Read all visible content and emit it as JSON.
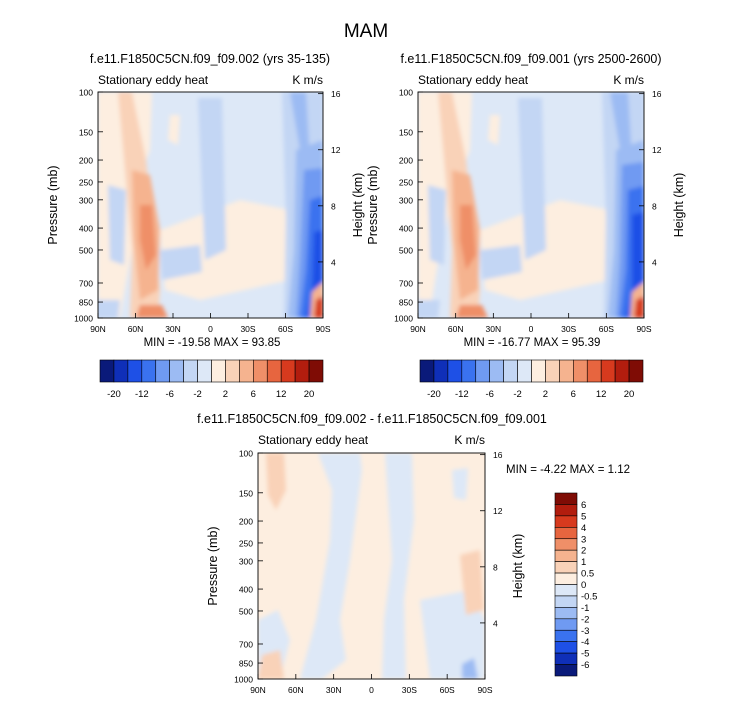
{
  "page_title": "MAM",
  "colors": {
    "scale_top": [
      "#0a1a7a",
      "#0f2fb8",
      "#1e50e6",
      "#3a72ef",
      "#6f9af2",
      "#9cbbf3",
      "#c3d6f4",
      "#dde8f7",
      "#fdeee0",
      "#f9d2b8",
      "#f5b38f",
      "#ef8f68",
      "#e7653f",
      "#d73a1e",
      "#b21d0e",
      "#7f0c05"
    ],
    "scale_diff": [
      "#0a1a7a",
      "#0f2fb8",
      "#1e50e6",
      "#3a72ef",
      "#6f9af2",
      "#9cbbf3",
      "#c3d6f4",
      "#dde8f7",
      "#fdeee0",
      "#f9d2b8",
      "#f5b38f",
      "#ef8f68",
      "#e7653f",
      "#d73a1e",
      "#b21d0e",
      "#7f0c05"
    ]
  },
  "chart_data": [
    {
      "type": "heatmap",
      "title": "f.e11.F1850C5CN.f09_f09.002 (yrs 35-135)",
      "subtitle_left": "Stationary eddy heat",
      "units": "K m/s",
      "ylabel": "Pressure (mb)",
      "ylabel_right": "Height (km)",
      "x_ticks": [
        "90N",
        "60N",
        "30N",
        "0",
        "30S",
        "60S",
        "90S"
      ],
      "y_ticks": [
        "100",
        "150",
        "200",
        "250",
        "300",
        "400",
        "500",
        "700",
        "850",
        "1000"
      ],
      "height_ticks": [
        "16",
        "12",
        "8",
        "4"
      ],
      "stats": "MIN = -19.58   MAX = 93.85",
      "levels": [
        -20,
        -16,
        -12,
        -8,
        -6,
        -4,
        -2,
        -1,
        1,
        2,
        4,
        6,
        8,
        12,
        16,
        20
      ],
      "colorbar_labels": [
        "-20",
        "-12",
        "-6",
        "-2",
        "2",
        "6",
        "12",
        "20"
      ]
    },
    {
      "type": "heatmap",
      "title": "f.e11.F1850C5CN.f09_f09.001 (yrs 2500-2600)",
      "subtitle_left": "Stationary eddy heat",
      "units": "K m/s",
      "ylabel": "Pressure (mb)",
      "ylabel_right": "Height (km)",
      "x_ticks": [
        "90N",
        "60N",
        "30N",
        "0",
        "30S",
        "60S",
        "90S"
      ],
      "y_ticks": [
        "100",
        "150",
        "200",
        "250",
        "300",
        "400",
        "500",
        "700",
        "850",
        "1000"
      ],
      "height_ticks": [
        "16",
        "12",
        "8",
        "4"
      ],
      "stats": "MIN = -16.77   MAX = 95.39",
      "levels": [
        -20,
        -16,
        -12,
        -8,
        -6,
        -4,
        -2,
        -1,
        1,
        2,
        4,
        6,
        8,
        12,
        16,
        20
      ],
      "colorbar_labels": [
        "-20",
        "-12",
        "-6",
        "-2",
        "2",
        "6",
        "12",
        "20"
      ]
    },
    {
      "type": "heatmap",
      "title": "f.e11.F1850C5CN.f09_f09.002 - f.e11.F1850C5CN.f09_f09.001",
      "subtitle_left": "Stationary eddy heat",
      "units": "K m/s",
      "ylabel": "Pressure (mb)",
      "ylabel_right": "Height (km)",
      "x_ticks": [
        "90N",
        "60N",
        "30N",
        "0",
        "30S",
        "60S",
        "90S"
      ],
      "y_ticks": [
        "100",
        "150",
        "200",
        "250",
        "300",
        "400",
        "500",
        "700",
        "850",
        "1000"
      ],
      "height_ticks": [
        "16",
        "12",
        "8",
        "4"
      ],
      "stats": "MIN =  -4.22   MAX =   1.12",
      "levels": [
        -6,
        -5,
        -4,
        -3,
        -2,
        -1,
        -0.5,
        0,
        0.5,
        1,
        2,
        3,
        4,
        5,
        6
      ],
      "colorbar_labels": [
        "6",
        "5",
        "4",
        "3",
        "2",
        "1",
        "0.5",
        "0",
        "-0.5",
        "-1",
        "-2",
        "-3",
        "-4",
        "-5",
        "-6"
      ]
    }
  ]
}
